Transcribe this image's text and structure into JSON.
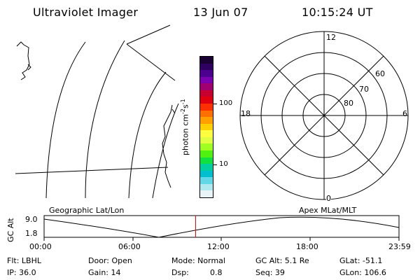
{
  "header": {
    "title": "Ultraviolet Imager",
    "date": "13 Jun 07",
    "time": "10:15:24 UT"
  },
  "colorbar": {
    "label_unit": "photon cm",
    "label_exp1": "-2",
    "label_mid": "s",
    "label_exp2": "-1",
    "ticks": [
      "100",
      "10"
    ],
    "colors": [
      "#1a0033",
      "#300060",
      "#4d0090",
      "#7a00b0",
      "#a00070",
      "#c80030",
      "#e00010",
      "#ff3000",
      "#ff7000",
      "#ffa000",
      "#ffd000",
      "#ffff40",
      "#e0ff40",
      "#a0ff20",
      "#50f010",
      "#10e040",
      "#00d0a0",
      "#00c0d0",
      "#60d8e8",
      "#b0e8f0",
      "#e8f4f8"
    ]
  },
  "polar": {
    "mlt_labels": {
      "top": "12",
      "left": "18",
      "right": "6",
      "bottom": "0"
    },
    "lat_labels": [
      "60",
      "70",
      "80"
    ]
  },
  "orbit_plot": {
    "ylabel": "GC Alt",
    "ymax_label": "9.0",
    "ymin_label": "1.8",
    "left_caption": "Geographic Lat/Lon",
    "right_caption": "Apex MLat/MLT",
    "current_time_fraction": 0.427,
    "xticks": [
      "00:00",
      "06:00",
      "12:00",
      "18:00",
      "23:59"
    ]
  },
  "status": {
    "filter": "Flt: LBHL",
    "door": "Door: Open",
    "mode": "Mode: Normal",
    "gc_alt": "GC Alt: 5.1 Re",
    "glat": "GLat: -51.1",
    "ip": "IP: 36.0",
    "gain": "Gain: 14",
    "dsp_label": "Dsp:",
    "dsp_value": "0.8",
    "seq": "Seq: 39",
    "glon": "GLon: 106.6"
  }
}
